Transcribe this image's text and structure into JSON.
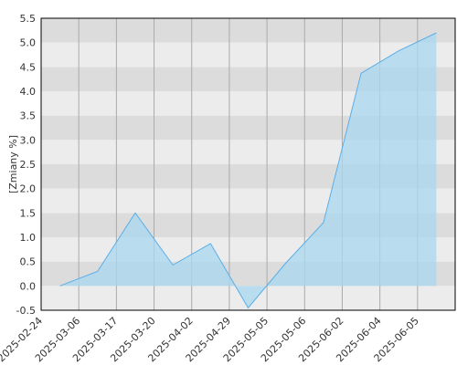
{
  "chart_data": {
    "type": "area",
    "y_label": "[Zmiany %]",
    "categories": [
      "2025-02-24",
      "2025-03-06",
      "2025-03-17",
      "2025-03-20",
      "2025-04-02",
      "2025-04-29",
      "2025-05-05",
      "2025-05-06",
      "2025-06-02",
      "2025-06-04",
      "2025-06-05"
    ],
    "values": [
      0,
      0.3,
      1.5,
      0.43,
      0.87,
      -0.45,
      0.47,
      1.3,
      4.37,
      4.83,
      5.2
    ],
    "color": "#5aaee8",
    "fill": "#a8d8ef",
    "ylim": [
      -0.5,
      5.5
    ],
    "yticks": [
      {
        "value": -0.5,
        "label": "-0.5"
      },
      {
        "value": 0,
        "label": "0.0"
      },
      {
        "value": 0.5,
        "label": "0.5"
      },
      {
        "value": 1,
        "label": "1.0"
      },
      {
        "value": 1.5,
        "label": "1.5"
      },
      {
        "value": 2,
        "label": "2.0"
      },
      {
        "value": 2.5,
        "label": "2.5"
      },
      {
        "value": 3,
        "label": "3.0"
      },
      {
        "value": 3.5,
        "label": "3.5"
      },
      {
        "value": 4,
        "label": "4.0"
      },
      {
        "value": 4.5,
        "label": "4.5"
      },
      {
        "value": 5,
        "label": "5.0"
      },
      {
        "value": 5.5,
        "label": "5.5"
      }
    ],
    "grid": true
  }
}
